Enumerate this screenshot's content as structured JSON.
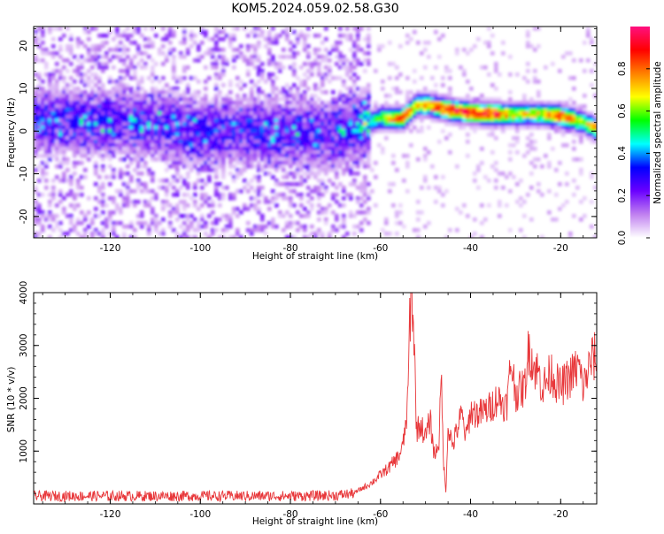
{
  "page": {
    "title": "KOM5.2024.059.02.58.G30"
  },
  "chart_data": [
    {
      "type": "heatmap",
      "title": "KOM5.2024.059.02.58.G30",
      "xlabel": "Height of straight line (km)",
      "ylabel": "Frequency (Hz)",
      "xlim": [
        -137,
        -12
      ],
      "ylim": [
        -25,
        24.5
      ],
      "x_ticks": [
        -120,
        -100,
        -80,
        -60,
        -40,
        -20
      ],
      "y_ticks": [
        -20,
        -10,
        0,
        10,
        20
      ],
      "x_tick_labels": [
        "-120",
        "-100",
        "-80",
        "-60",
        "-40",
        "-20"
      ],
      "y_tick_labels": [
        "-20",
        "-10",
        "0",
        "10",
        "20"
      ],
      "colorbar": {
        "label": "Normalized spectral amplitude",
        "range": [
          0.0,
          1.0
        ],
        "ticks": [
          0.0,
          0.2,
          0.4,
          0.6,
          0.8
        ],
        "tick_labels": [
          "0.0",
          "0.2",
          "0.4",
          "0.6",
          "0.8"
        ],
        "colormap": [
          "#ffffff",
          "#c080f0",
          "#6a00ff",
          "#0000ff",
          "#00ffff",
          "#00ff00",
          "#ffff00",
          "#ff8000",
          "#ff0000",
          "#ff1080"
        ]
      },
      "ridge": {
        "x": [
          -137,
          -130,
          -120,
          -110,
          -100,
          -90,
          -80,
          -70,
          -65,
          -60,
          -55,
          -52,
          -49,
          -45,
          -40,
          -35,
          -30,
          -25,
          -20,
          -15,
          -12
        ],
        "y": [
          2.5,
          2.5,
          2,
          1.5,
          0,
          0,
          -0.5,
          -1,
          1,
          3,
          3,
          6,
          6,
          5,
          4.2,
          4,
          4,
          4,
          3.5,
          2,
          0.5
        ],
        "amplitude": [
          0.3,
          0.3,
          0.28,
          0.3,
          0.3,
          0.3,
          0.3,
          0.3,
          0.4,
          0.6,
          0.9,
          0.75,
          0.8,
          0.95,
          0.95,
          0.95,
          0.7,
          0.7,
          0.95,
          0.6,
          0.85
        ]
      },
      "grid": false,
      "legend": "colorbar-right"
    },
    {
      "type": "line",
      "xlabel": "Height of straight line (km)",
      "ylabel": "SNR (10 * v/v)",
      "xlim": [
        -137,
        -12
      ],
      "ylim": [
        0,
        4000
      ],
      "x_ticks": [
        -120,
        -100,
        -80,
        -60,
        -40,
        -20
      ],
      "y_ticks": [
        1000,
        2000,
        3000,
        4000
      ],
      "x_tick_labels": [
        "-120",
        "-100",
        "-80",
        "-60",
        "-40",
        "-20"
      ],
      "y_tick_labels": [
        "1000",
        "2000",
        "3000",
        "4000"
      ],
      "color": "#e8373a",
      "series": [
        {
          "x": [
            -137,
            -130,
            -120,
            -110,
            -100,
            -90,
            -80,
            -70,
            -66,
            -64,
            -62,
            -60,
            -58,
            -56,
            -55,
            -54,
            -53.5,
            -53,
            -52.5,
            -52,
            -51,
            -50,
            -49,
            -48,
            -47,
            -46.5,
            -46,
            -45.5,
            -45,
            -44,
            -43,
            -42,
            -41,
            -40,
            -38,
            -36,
            -34,
            -32,
            -31,
            -30,
            -28,
            -27,
            -26,
            -25,
            -24,
            -22,
            -21,
            -20,
            -18,
            -16,
            -15,
            -14,
            -13,
            -12
          ],
          "y": [
            150,
            150,
            150,
            150,
            150,
            150,
            150,
            160,
            200,
            300,
            400,
            550,
            700,
            900,
            1100,
            1800,
            3500,
            4000,
            3000,
            1400,
            1500,
            1250,
            1600,
            900,
            1200,
            2400,
            800,
            200,
            1500,
            1100,
            1400,
            1700,
            1250,
            1750,
            1700,
            1800,
            2000,
            1850,
            2700,
            2100,
            2200,
            3000,
            2600,
            2500,
            2200,
            2500,
            2300,
            2200,
            2400,
            2600,
            2200,
            2500,
            2750,
            2800
          ]
        }
      ],
      "noise_floor": 150,
      "grid": false,
      "legend": "none"
    }
  ]
}
